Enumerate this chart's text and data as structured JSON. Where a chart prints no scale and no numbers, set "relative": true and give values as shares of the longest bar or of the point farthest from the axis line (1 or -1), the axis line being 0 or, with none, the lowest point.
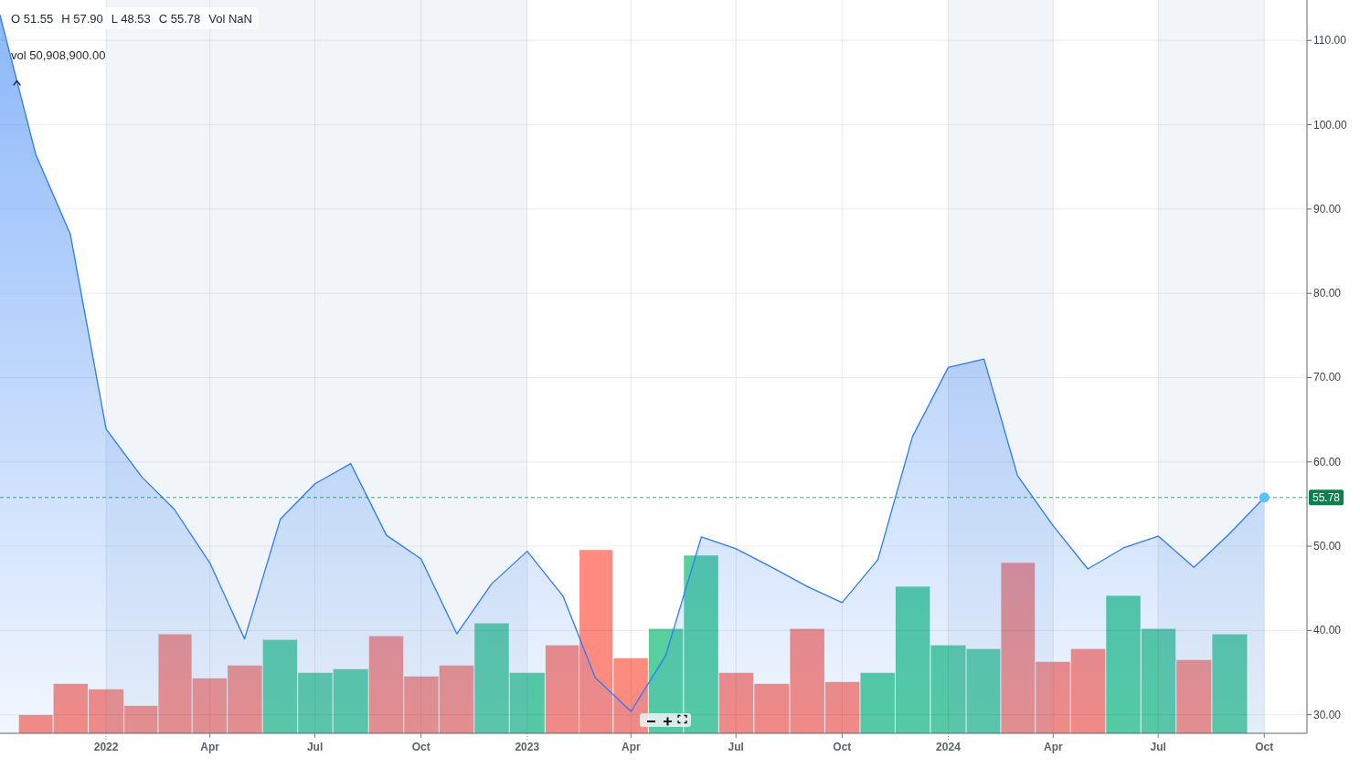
{
  "chart_data": [
    {
      "type": "area",
      "annotations": [
        "O 51.55",
        "H 57.90",
        "L 48.53",
        "C 55.78",
        "Vol NaN"
      ],
      "xlim": [
        "2021-10-01",
        "2024-11-07"
      ],
      "xticks": [
        "2022",
        {
          "value": "2022-04-01",
          "label": "Apr"
        },
        {
          "value": "2022-07-01",
          "label": "Jul"
        },
        {
          "value": "2022-10-01",
          "label": "Oct"
        },
        "2023",
        {
          "value": "2023-04-01",
          "label": "Apr"
        },
        {
          "value": "2023-07-01",
          "label": "Jul"
        },
        {
          "value": "2023-10-01",
          "label": "Oct"
        },
        "2024",
        {
          "value": "2024-04-01",
          "label": "Apr"
        },
        {
          "value": "2024-07-01",
          "label": "Jul"
        },
        {
          "value": "2024-10-01",
          "label": "Oct"
        }
      ],
      "ylim": [
        27.8,
        114.8
      ],
      "yticks": [
        {
          "value": 30,
          "label": "30.00"
        },
        {
          "value": 40,
          "label": "40.00"
        },
        {
          "value": 50,
          "label": "50.00"
        },
        {
          "value": 60,
          "label": "60.00"
        },
        {
          "value": 70,
          "label": "70.00"
        },
        {
          "value": 80,
          "label": "80.00"
        },
        {
          "value": 90,
          "label": "90.00"
        },
        {
          "value": 100,
          "label": "100.00"
        },
        {
          "value": 110,
          "label": "110.00"
        }
      ],
      "grid": true,
      "bands": [
        {
          "axis": "x",
          "from": "2022",
          "to": "2023",
          "color": "#f1f5f9"
        },
        {
          "axis": "x",
          "from": "2024",
          "to": "2024-04-01",
          "color": "#f1f5f9"
        },
        {
          "axis": "x",
          "from": "2024-07-01",
          "to": "2024-10-01",
          "color": "#f1f5f9"
        }
      ],
      "ref_lines": [
        {
          "axis": "y",
          "value": 55.78,
          "label": "55.78",
          "color": "#0b7f4d",
          "line_style": "dashed"
        }
      ],
      "series": [
        {
          "color": "#2b7bf5",
          "x": [
            "2021-10",
            "2021-11",
            "2021-12",
            "2022-01",
            "2022-02",
            "2022-03",
            "2022-04",
            "2022-05",
            "2022-06",
            "2022-07",
            "2022-08",
            "2022-09",
            "2022-10",
            "2022-11",
            "2022-12",
            "2023-01",
            "2023-02",
            "2023-03",
            "2023-04",
            "2023-05",
            "2023-06",
            "2023-07",
            "2023-08",
            "2023-09",
            "2023-10",
            "2023-11",
            "2023-12",
            "2024-01",
            "2024-02",
            "2024-03",
            "2024-04",
            "2024-05",
            "2024-06",
            "2024-07",
            "2024-08",
            "2024-09",
            "2024-10"
          ],
          "values": [
            113,
            96.5,
            87.0,
            63.9,
            58.2,
            54.4,
            48.0,
            39.0,
            53.2,
            57.4,
            59.8,
            51.3,
            48.5,
            39.6,
            45.5,
            49.4,
            44.1,
            34.4,
            30.4,
            37.0,
            51.1,
            49.7,
            47.5,
            45.2,
            43.3,
            48.4,
            63.0,
            71.2,
            72.2,
            58.4,
            52.4,
            47.3,
            49.8,
            51.2,
            47.5,
            51.5,
            55.78
          ]
        }
      ]
    },
    {
      "type": "bar",
      "relative": true,
      "annotations": [
        "vol 50,908,900.00"
      ],
      "xlim": [
        "2021-10-01",
        "2024-11-07"
      ],
      "x": [
        "2021-11",
        "2021-12",
        "2022-01",
        "2022-02",
        "2022-03",
        "2022-04",
        "2022-05",
        "2022-06",
        "2022-07",
        "2022-08",
        "2022-09",
        "2022-10",
        "2022-11",
        "2022-12",
        "2023-01",
        "2023-02",
        "2023-03",
        "2023-04",
        "2023-05",
        "2023-06",
        "2023-07",
        "2023-08",
        "2023-09",
        "2023-10",
        "2023-11",
        "2023-12",
        "2024-01",
        "2024-02",
        "2024-03",
        "2024-04",
        "2024-05",
        "2024-06",
        "2024-07",
        "2024-08",
        "2024-09"
      ],
      "values": [
        0.1,
        0.27,
        0.24,
        0.15,
        0.54,
        0.3,
        0.37,
        0.51,
        0.33,
        0.35,
        0.53,
        0.31,
        0.37,
        0.6,
        0.33,
        0.48,
        1,
        0.41,
        0.57,
        0.97,
        0.33,
        0.27,
        0.57,
        0.28,
        0.33,
        0.8,
        0.48,
        0.46,
        0.93,
        0.39,
        0.46,
        0.75,
        0.57,
        0.4,
        0.54
      ],
      "colors": [
        "#fd8b80",
        "#fd8b80",
        "#fd8b80",
        "#fd8b80",
        "#fd8b80",
        "#fd8b80",
        "#fd8b80",
        "#57cf9e",
        "#57cf9e",
        "#57cf9e",
        "#fd8b80",
        "#fd8b80",
        "#fd8b80",
        "#57cf9e",
        "#57cf9e",
        "#fd8b80",
        "#fd8b80",
        "#fd8b80",
        "#57cf9e",
        "#57cf9e",
        "#fd8b80",
        "#fd8b80",
        "#fd8b80",
        "#fd8b80",
        "#57cf9e",
        "#57cf9e",
        "#57cf9e",
        "#57cf9e",
        "#fd8b80",
        "#fd8b80",
        "#fd8b80",
        "#57cf9e",
        "#57cf9e",
        "#fd8b80",
        "#57cf9e"
      ]
    }
  ]
}
